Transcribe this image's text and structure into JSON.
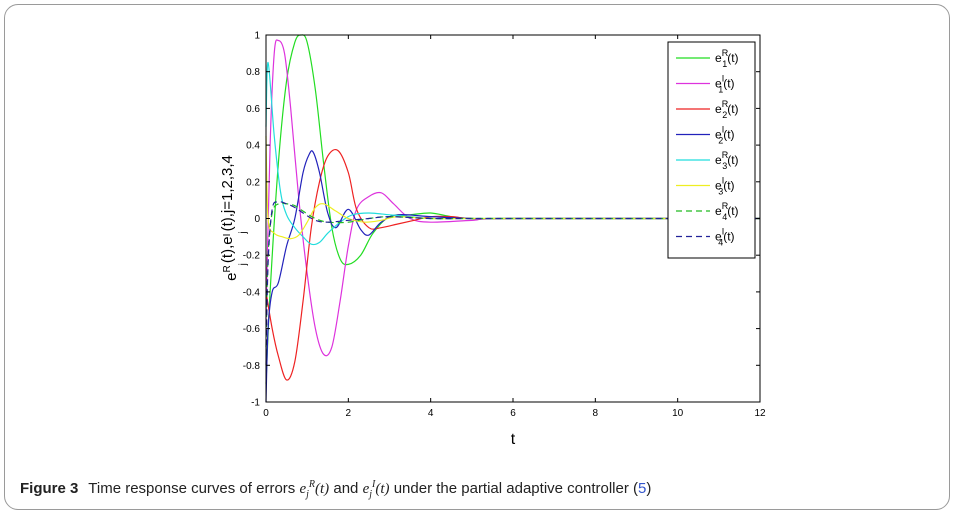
{
  "caption": {
    "label": "Figure 3",
    "text_before": "Time response curves of errors",
    "symbol_1": "e_j^R(t)",
    "joiner": "and",
    "symbol_2": "e_j^I(t)",
    "text_after": "under the partial adaptive controller (",
    "ref": "5",
    "close": ")"
  },
  "chart_data": {
    "type": "line",
    "xlabel": "t",
    "ylabel": "e_j^R(t), e_j^I(t), j=1,2,3,4",
    "xlim": [
      0,
      12
    ],
    "ylim": [
      -1,
      1
    ],
    "xticks": [
      "0",
      "2",
      "4",
      "6",
      "8",
      "10",
      "12"
    ],
    "yticks": [
      "-1",
      "-0.8",
      "-0.6",
      "-0.4",
      "-0.2",
      "0",
      "0.2",
      "0.4",
      "0.6",
      "0.8",
      "1"
    ],
    "grid": false,
    "legend_position": "top-right",
    "series": [
      {
        "name": "e1R(t)",
        "label_main": "e",
        "label_sup": "R",
        "label_sub": "1",
        "label_tail": "(t)",
        "color": "#22dd22",
        "style": "solid",
        "x": [
          0,
          0.1,
          0.3,
          0.5,
          0.7,
          0.85,
          1.0,
          1.2,
          1.4,
          1.6,
          1.8,
          2.0,
          2.3,
          2.6,
          3.0,
          3.5,
          4.0,
          4.5,
          5.0,
          6.0,
          12
        ],
        "y": [
          -0.9,
          -0.4,
          0.3,
          0.75,
          0.96,
          1.0,
          0.96,
          0.7,
          0.3,
          -0.05,
          -0.22,
          -0.25,
          -0.2,
          -0.08,
          0.01,
          0.02,
          0.03,
          0.01,
          0,
          0,
          0
        ]
      },
      {
        "name": "e1I(t)",
        "label_main": "e",
        "label_sup": "I",
        "label_sub": "1",
        "label_tail": "(t)",
        "color": "#dd33dd",
        "style": "solid",
        "x": [
          0,
          0.1,
          0.2,
          0.3,
          0.45,
          0.6,
          0.8,
          1.0,
          1.2,
          1.4,
          1.6,
          1.8,
          2.0,
          2.2,
          2.5,
          2.8,
          3.1,
          3.5,
          4.0,
          5.0,
          6.0,
          12
        ],
        "y": [
          -0.55,
          0.4,
          0.9,
          0.97,
          0.9,
          0.6,
          0.1,
          -0.3,
          -0.6,
          -0.74,
          -0.7,
          -0.45,
          -0.15,
          0.05,
          0.12,
          0.14,
          0.08,
          0,
          -0.02,
          -0.01,
          0,
          0
        ]
      },
      {
        "name": "e2R(t)",
        "label_main": "e",
        "label_sup": "R",
        "label_sub": "2",
        "label_tail": "(t)",
        "color": "#ee2222",
        "style": "solid",
        "x": [
          0,
          0.15,
          0.3,
          0.5,
          0.7,
          0.9,
          1.1,
          1.3,
          1.5,
          1.75,
          2.0,
          2.2,
          2.5,
          2.8,
          3.2,
          3.6,
          4.0,
          4.5,
          5.0,
          6.0,
          12
        ],
        "y": [
          -0.4,
          -0.6,
          -0.75,
          -0.88,
          -0.78,
          -0.45,
          -0.05,
          0.2,
          0.34,
          0.37,
          0.25,
          0.05,
          -0.05,
          -0.05,
          -0.03,
          -0.01,
          0.01,
          0.01,
          0,
          0,
          0
        ]
      },
      {
        "name": "e2I(t)",
        "label_main": "e",
        "label_sup": "I",
        "label_sub": "2",
        "label_tail": "(t)",
        "color": "#2222bb",
        "style": "solid",
        "x": [
          0,
          0.05,
          0.15,
          0.3,
          0.5,
          0.7,
          0.9,
          1.05,
          1.15,
          1.3,
          1.5,
          1.7,
          2.0,
          2.3,
          2.5,
          2.8,
          3.2,
          4.0,
          5.0,
          6.0,
          12
        ],
        "y": [
          -1.0,
          -0.6,
          -0.4,
          -0.35,
          -0.15,
          0.0,
          0.25,
          0.35,
          0.36,
          0.25,
          0.03,
          -0.05,
          0.05,
          -0.06,
          -0.09,
          -0.02,
          0.02,
          0.01,
          0,
          0,
          0
        ]
      },
      {
        "name": "e3R(t)",
        "label_main": "e",
        "label_sup": "R",
        "label_sub": "3",
        "label_tail": "(t)",
        "color": "#22dddd",
        "style": "solid",
        "x": [
          0,
          0.05,
          0.2,
          0.35,
          0.5,
          0.7,
          0.9,
          1.1,
          1.3,
          1.5,
          1.8,
          2.1,
          2.5,
          3.0,
          3.5,
          4.0,
          5.0,
          6.0,
          12
        ],
        "y": [
          0.5,
          0.85,
          0.45,
          0.15,
          0.02,
          -0.05,
          -0.1,
          -0.14,
          -0.13,
          -0.08,
          -0.02,
          0.02,
          0.03,
          0.02,
          0.01,
          0,
          0,
          0,
          0
        ]
      },
      {
        "name": "e3I(t)",
        "label_main": "e",
        "label_sup": "I",
        "label_sub": "3",
        "label_tail": "(t)",
        "color": "#eeee22",
        "style": "solid",
        "x": [
          0,
          0.05,
          0.2,
          0.4,
          0.6,
          0.8,
          1.0,
          1.2,
          1.4,
          1.7,
          2.0,
          2.4,
          2.8,
          3.2,
          4.0,
          5.0,
          6.0,
          12
        ],
        "y": [
          0.45,
          0.0,
          -0.08,
          -0.1,
          -0.11,
          -0.09,
          -0.02,
          0.06,
          0.08,
          0.04,
          0.0,
          -0.02,
          -0.01,
          0.01,
          0,
          0,
          0,
          0
        ]
      },
      {
        "name": "e4R(t)",
        "label_main": "e",
        "label_sup": "R",
        "label_sub": "4",
        "label_tail": "(t)",
        "color": "#22bb22",
        "style": "dashed",
        "x": [
          0,
          0.05,
          0.15,
          0.3,
          0.5,
          0.7,
          0.9,
          1.2,
          1.5,
          2.0,
          2.5,
          3.0,
          4.0,
          5.0,
          6.0,
          12
        ],
        "y": [
          -0.7,
          -0.2,
          0.03,
          0.08,
          0.08,
          0.07,
          0.04,
          0.0,
          -0.02,
          -0.02,
          0.0,
          0.01,
          0.0,
          0,
          0,
          0
        ]
      },
      {
        "name": "e4I(t)",
        "label_main": "e",
        "label_sup": "I",
        "label_sub": "4",
        "label_tail": "(t)",
        "color": "#222299",
        "style": "dashed",
        "x": [
          0,
          0.05,
          0.15,
          0.3,
          0.5,
          0.7,
          0.9,
          1.2,
          1.5,
          2.0,
          2.5,
          3.0,
          4.0,
          5.0,
          6.0,
          12
        ],
        "y": [
          -0.8,
          -0.25,
          0.05,
          0.09,
          0.08,
          0.06,
          0.03,
          -0.01,
          -0.02,
          -0.01,
          0.0,
          0.01,
          0.0,
          0,
          0,
          0
        ]
      }
    ]
  }
}
